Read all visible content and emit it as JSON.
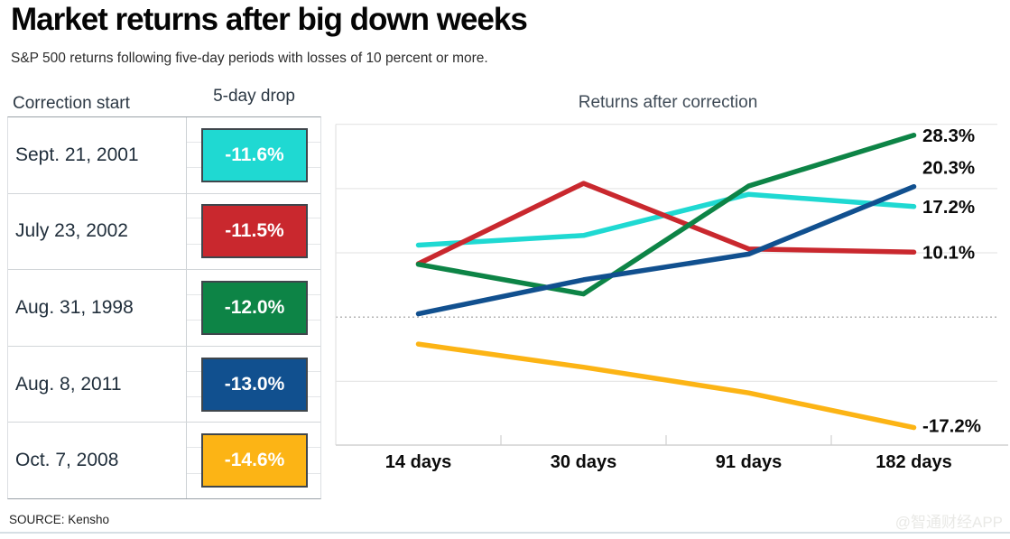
{
  "header": {
    "title": "Market returns after big down weeks",
    "subtitle": "S&P 500 returns following five-day periods with losses of 10 percent or more."
  },
  "table": {
    "col1_header": "Correction start",
    "col2_header": "5-day drop",
    "rows": [
      {
        "date": "Sept. 21, 2001",
        "drop": "-11.6%",
        "color": "#1fd9d2"
      },
      {
        "date": "July 23, 2002",
        "drop": "-11.5%",
        "color": "#c9282e"
      },
      {
        "date": "Aug. 31, 1998",
        "drop": "-12.0%",
        "color": "#0d8446"
      },
      {
        "date": "Aug. 8, 2011",
        "drop": "-13.0%",
        "color": "#11508f"
      },
      {
        "date": "Oct. 7, 2008",
        "drop": "-14.6%",
        "color": "#fcb415"
      }
    ]
  },
  "chart_data": {
    "type": "line",
    "title": "Returns after correction",
    "categories": [
      "14 days",
      "30 days",
      "91 days",
      "182 days"
    ],
    "series": [
      {
        "name": "Sept. 21, 2001",
        "color": "#1fd9d2",
        "values": [
          11.2,
          12.7,
          19.1,
          17.2
        ],
        "end_label": "17.2%"
      },
      {
        "name": "July 23, 2002",
        "color": "#c9282e",
        "values": [
          8.3,
          20.8,
          10.6,
          10.1
        ],
        "end_label": "10.1%"
      },
      {
        "name": "Aug. 31, 1998",
        "color": "#0d8446",
        "values": [
          8.2,
          3.6,
          20.4,
          28.3
        ],
        "end_label": "28.3%"
      },
      {
        "name": "Aug. 8, 2011",
        "color": "#11508f",
        "values": [
          0.5,
          5.8,
          9.8,
          20.3
        ],
        "end_label": "20.3%"
      },
      {
        "name": "Oct. 7, 2008",
        "color": "#fcb415",
        "values": [
          -4.2,
          -7.8,
          -11.8,
          -17.2
        ],
        "end_label": "-17.2%"
      }
    ],
    "ylim": [
      -22,
      32
    ],
    "gridline_values": [
      30,
      20,
      10,
      -10
    ],
    "zero_line_value": 0,
    "grid": "horizontal-only",
    "y_axis_labels": "none",
    "legend": "end-of-line-labels"
  },
  "footer": {
    "source": "SOURCE: Kensho",
    "watermark": "@智通财经APP"
  }
}
